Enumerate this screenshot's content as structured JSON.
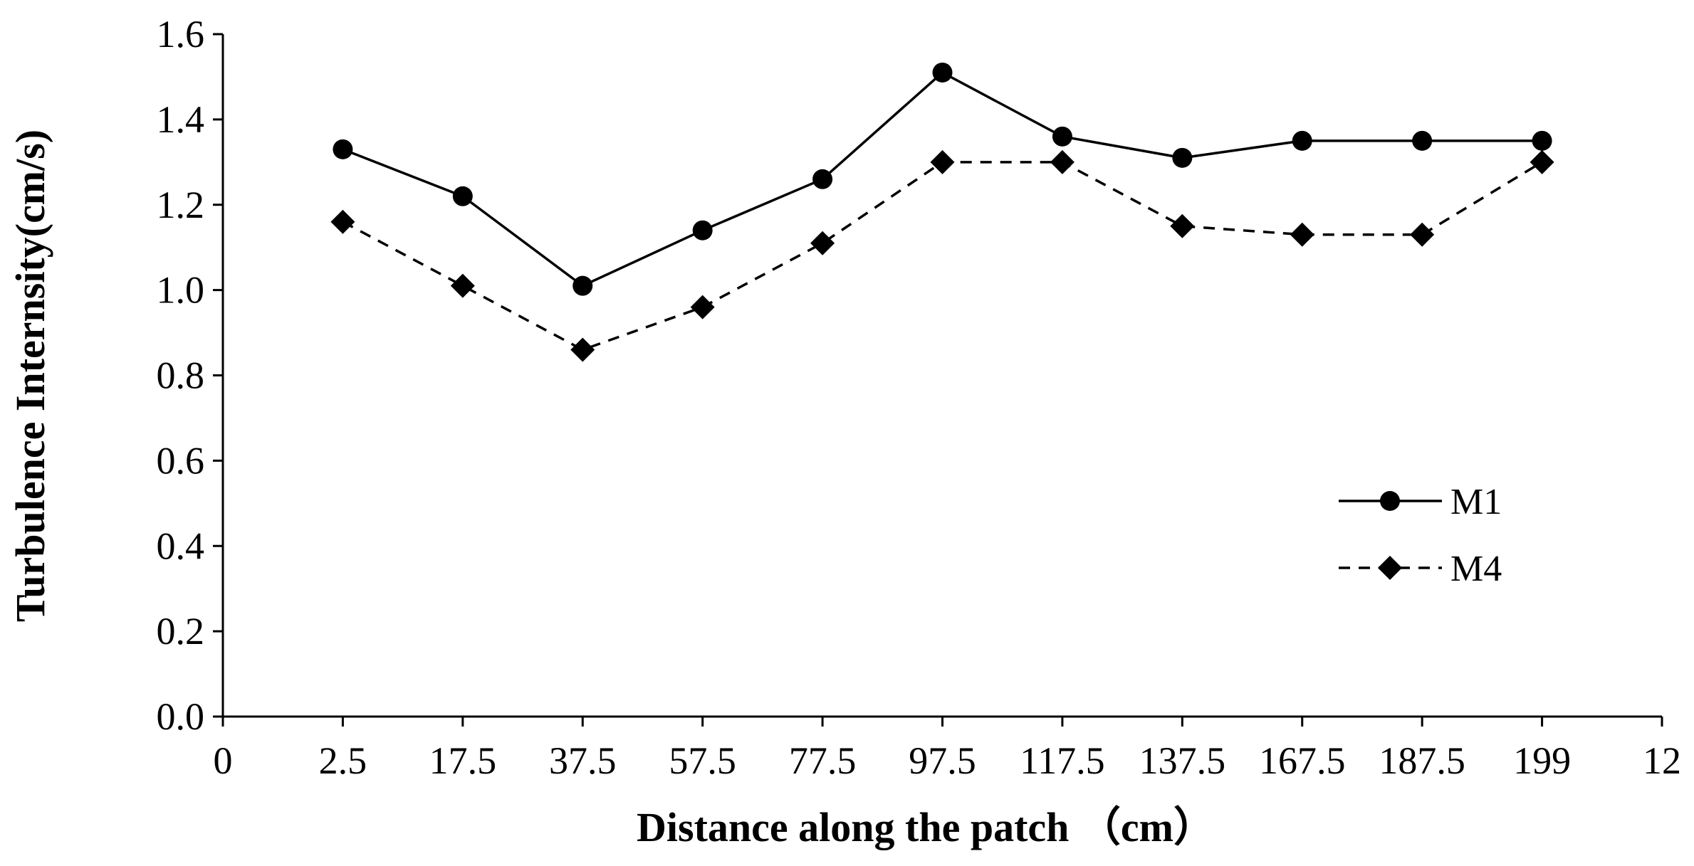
{
  "chart_data": {
    "type": "line",
    "x_tick_labels": [
      "0",
      "2.5",
      "17.5",
      "37.5",
      "57.5",
      "77.5",
      "97.5",
      "117.5",
      "137.5",
      "167.5",
      "187.5",
      "199",
      "12"
    ],
    "categories": [
      "2.5",
      "17.5",
      "37.5",
      "57.5",
      "77.5",
      "97.5",
      "117.5",
      "137.5",
      "167.5",
      "187.5",
      "199"
    ],
    "series": [
      {
        "name": "M1",
        "values": [
          1.33,
          1.22,
          1.01,
          1.14,
          1.26,
          1.51,
          1.36,
          1.31,
          1.35,
          1.35,
          1.35
        ],
        "line_style": "solid",
        "marker": "circle",
        "color": "#000000"
      },
      {
        "name": "M4",
        "values": [
          1.16,
          1.01,
          0.86,
          0.96,
          1.11,
          1.3,
          1.3,
          1.15,
          1.13,
          1.13,
          1.3
        ],
        "line_style": "dashed",
        "marker": "diamond",
        "color": "#000000"
      }
    ],
    "ylim": [
      0,
      1.6
    ],
    "y_ticks": [
      "0.0",
      "0.2",
      "0.4",
      "0.6",
      "0.8",
      "1.0",
      "1.2",
      "1.4",
      "1.6"
    ],
    "xlabel": "Distance along the patch （cm）",
    "ylabel": "Turbulence Internsity(cm/s)",
    "title": "",
    "grid": false,
    "legend_position": "center-right"
  }
}
